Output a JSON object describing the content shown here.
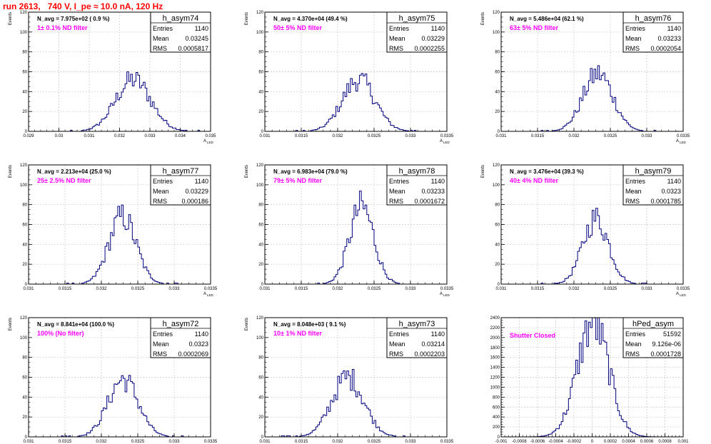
{
  "title": "run 2613,   740 V, I_pe ≈ 10.0 nA, 120 Hz",
  "colors": {
    "hist": "#00007f",
    "grid": "#c8c8c8",
    "filter_label": "#ff00ff",
    "title": "#ff0000"
  },
  "panels": [
    {
      "stats": {
        "name": "h_asym74",
        "entries": "1140",
        "mean": "0.03245",
        "rms": "0.0005817"
      },
      "navg": "N_avg = 7.975e+02 ( 0.9 %)",
      "filter": "1± 0.1% ND filter",
      "ylabel": "Events",
      "xlabel": "A LED",
      "chart_data": {
        "type": "histogram",
        "xlim": [
          0.029,
          0.035
        ],
        "ylim": [
          0,
          120
        ],
        "xticks": [
          "0.029",
          "0.03",
          "0.031",
          "0.032",
          "0.033",
          "0.034",
          "0.035"
        ],
        "yticks": [
          "0",
          "20",
          "40",
          "60",
          "80",
          "100",
          "120"
        ],
        "hist": {
          "mean": 0.03245,
          "rms": 0.0005817,
          "entries": 1140,
          "peak": 52
        }
      }
    },
    {
      "stats": {
        "name": "h_asym75",
        "entries": "1140",
        "mean": "0.03229",
        "rms": "0.0002255"
      },
      "navg": "N_avg = 4.370e+04 (49.4 %)",
      "filter": "50± 5% ND filter",
      "ylabel": "Events",
      "xlabel": "A LED",
      "chart_data": {
        "type": "histogram",
        "xlim": [
          0.031,
          0.0335
        ],
        "ylim": [
          0,
          120
        ],
        "xticks": [
          "0.031",
          "0.0315",
          "0.032",
          "0.0325",
          "0.033",
          "0.0335"
        ],
        "yticks": [
          "0",
          "20",
          "40",
          "60",
          "80",
          "100",
          "120"
        ],
        "hist": {
          "mean": 0.03229,
          "rms": 0.0002255,
          "entries": 1140,
          "peak": 52
        }
      }
    },
    {
      "stats": {
        "name": "h_asym76",
        "entries": "1140",
        "mean": "0.03233",
        "rms": "0.0002054"
      },
      "navg": "N_avg = 5.486e+04 (62.1 %)",
      "filter": "63± 5% ND filter",
      "ylabel": "Events",
      "xlabel": "A LED",
      "chart_data": {
        "type": "histogram",
        "xlim": [
          0.031,
          0.0335
        ],
        "ylim": [
          0,
          120
        ],
        "xticks": [
          "0.031",
          "0.0315",
          "0.032",
          "0.0325",
          "0.033",
          "0.0335"
        ],
        "yticks": [
          "0",
          "20",
          "40",
          "60",
          "80",
          "100",
          "120"
        ],
        "hist": {
          "mean": 0.03233,
          "rms": 0.0002054,
          "entries": 1140,
          "peak": 58
        }
      }
    },
    {
      "stats": {
        "name": "h_asym77",
        "entries": "1140",
        "mean": "0.03229",
        "rms": "0.000186"
      },
      "navg": "N_avg = 2.213e+04 (25.0 %)",
      "filter": "25± 2.5% ND filter",
      "ylabel": "Events",
      "xlabel": "A LED",
      "chart_data": {
        "type": "histogram",
        "xlim": [
          0.031,
          0.0335
        ],
        "ylim": [
          0,
          120
        ],
        "xticks": [
          "0.031",
          "0.0315",
          "0.032",
          "0.0325",
          "0.033",
          "0.0335"
        ],
        "yticks": [
          "0",
          "20",
          "40",
          "60",
          "80",
          "100",
          "120"
        ],
        "hist": {
          "mean": 0.03229,
          "rms": 0.000186,
          "entries": 1140,
          "peak": 68
        }
      }
    },
    {
      "stats": {
        "name": "h_asym78",
        "entries": "1140",
        "mean": "0.03233",
        "rms": "0.0001672"
      },
      "navg": "N_avg = 6.983e+04 (79.0 %)",
      "filter": "79± 5% ND filter",
      "ylabel": "Events",
      "xlabel": "A LED",
      "chart_data": {
        "type": "histogram",
        "xlim": [
          0.031,
          0.0335
        ],
        "ylim": [
          0,
          120
        ],
        "xticks": [
          "0.031",
          "0.0315",
          "0.032",
          "0.0325",
          "0.033",
          "0.0335"
        ],
        "yticks": [
          "0",
          "20",
          "40",
          "60",
          "80",
          "100",
          "120"
        ],
        "hist": {
          "mean": 0.03233,
          "rms": 0.0001672,
          "entries": 1140,
          "peak": 78
        }
      }
    },
    {
      "stats": {
        "name": "h_asym79",
        "entries": "1140",
        "mean": "0.0323",
        "rms": "0.0001785"
      },
      "navg": "N_avg = 3.476e+04 (39.3 %)",
      "filter": "40± 4% ND filter",
      "ylabel": "Events",
      "xlabel": "A LED",
      "chart_data": {
        "type": "histogram",
        "xlim": [
          0.031,
          0.0335
        ],
        "ylim": [
          0,
          120
        ],
        "xticks": [
          "0.031",
          "0.0315",
          "0.032",
          "0.0325",
          "0.033",
          "0.0335"
        ],
        "yticks": [
          "0",
          "20",
          "40",
          "60",
          "80",
          "100",
          "120"
        ],
        "hist": {
          "mean": 0.0323,
          "rms": 0.0001785,
          "entries": 1140,
          "peak": 66
        }
      }
    },
    {
      "stats": {
        "name": "h_asym72",
        "entries": "1140",
        "mean": "0.0323",
        "rms": "0.0002069"
      },
      "navg": "N_avg = 8.841e+04 (100.0 %)",
      "filter": "100% (No filter)",
      "ylabel": "Events",
      "xlabel": "A LED",
      "chart_data": {
        "type": "histogram",
        "xlim": [
          0.031,
          0.0335
        ],
        "ylim": [
          0,
          120
        ],
        "xticks": [
          "0.031",
          "0.0315",
          "0.032",
          "0.0325",
          "0.033",
          "0.0335"
        ],
        "yticks": [
          "0",
          "20",
          "40",
          "60",
          "80",
          "100",
          "120"
        ],
        "hist": {
          "mean": 0.0323,
          "rms": 0.0002069,
          "entries": 1140,
          "peak": 58
        }
      }
    },
    {
      "stats": {
        "name": "h_asym73",
        "entries": "1140",
        "mean": "0.03214",
        "rms": "0.0002203"
      },
      "navg": "N_avg = 8.048e+03 ( 9.1 %)",
      "filter": "10± 1% ND filter",
      "ylabel": "Events",
      "xlabel": "A LED",
      "chart_data": {
        "type": "histogram",
        "xlim": [
          0.031,
          0.0335
        ],
        "ylim": [
          0,
          120
        ],
        "xticks": [
          "0.031",
          "0.0315",
          "0.032",
          "0.0325",
          "0.033",
          "0.0335"
        ],
        "yticks": [
          "0",
          "20",
          "40",
          "60",
          "80",
          "100",
          "120"
        ],
        "hist": {
          "mean": 0.03214,
          "rms": 0.0002203,
          "entries": 1140,
          "peak": 60
        }
      }
    },
    {
      "stats": {
        "name": "hPed_asym",
        "entries": "51592",
        "mean": "9.126e-06",
        "rms": "0.0001728"
      },
      "navg": "",
      "filter": "Shutter Closed",
      "ylabel": "",
      "xlabel": "",
      "chart_data": {
        "type": "histogram",
        "xlim": [
          -0.001,
          0.001
        ],
        "ylim": [
          0,
          2400
        ],
        "xticks": [
          "-0.001",
          "-0.0008",
          "-0.0006",
          "-0.0004",
          "-0.0002",
          "0",
          "0.0002",
          "0.0004",
          "0.0006",
          "0.0008",
          "0.001"
        ],
        "yticks": [
          "0",
          "200",
          "400",
          "600",
          "800",
          "1000",
          "1200",
          "1400",
          "1600",
          "1800",
          "2000",
          "2200",
          "2400"
        ],
        "hist": {
          "mean": 9.126e-06,
          "rms": 0.0001728,
          "entries": 51592,
          "peak": 2300
        }
      }
    }
  ]
}
